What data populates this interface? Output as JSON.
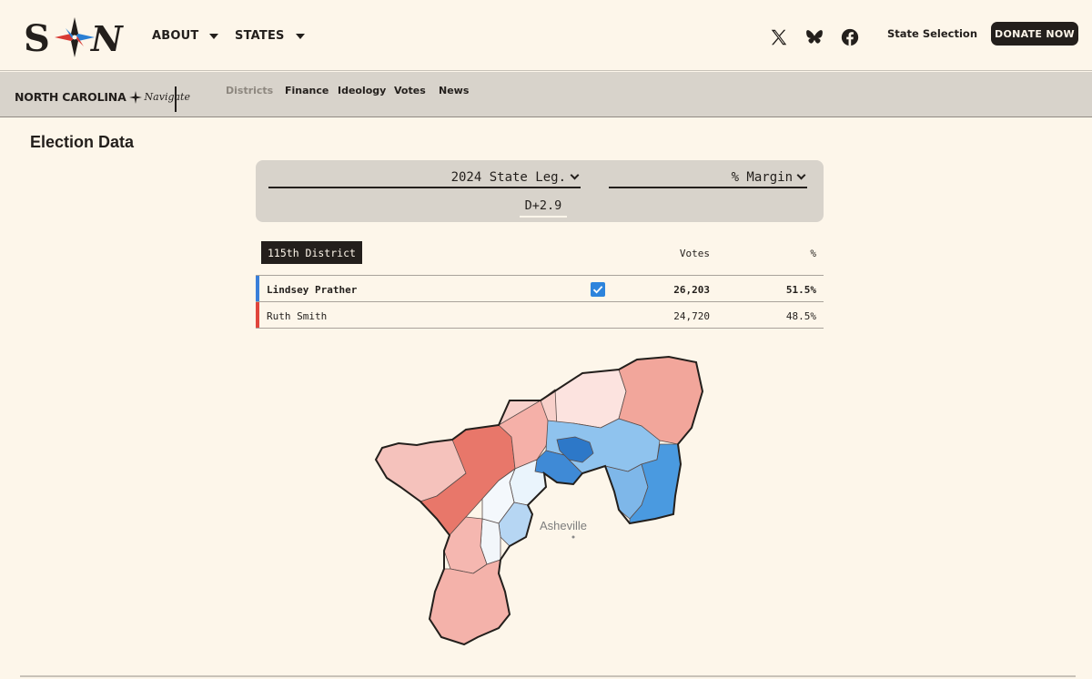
{
  "nav": {
    "about_label": "ABOUT",
    "states_label": "STATES",
    "state_selection_label": "State Selection",
    "donate_label": "DONATE NOW",
    "social_icons": [
      "x-icon",
      "bluesky-icon",
      "facebook-icon"
    ]
  },
  "subnav": {
    "state_name": "NORTH CAROLINA",
    "brand_script": "Navigate",
    "tabs": [
      {
        "label": "Districts",
        "active": true
      },
      {
        "label": "Finance",
        "active": false
      },
      {
        "label": "Ideology",
        "active": false
      },
      {
        "label": "Votes",
        "active": false
      },
      {
        "label": "News",
        "active": false
      }
    ]
  },
  "page": {
    "title": "Election Data"
  },
  "controls": {
    "election_select": "2024 State Leg.",
    "metric_select": "% Margin",
    "margin_value": "D+2.9"
  },
  "results": {
    "district": "115th District",
    "votes_header": "Votes",
    "pct_header": "%",
    "candidates": [
      {
        "name": "Lindsey Prather",
        "votes": "26,203",
        "pct": "51.5%",
        "party_color": "#3a7fd9",
        "winner": true
      },
      {
        "name": "Ruth Smith",
        "votes": "24,720",
        "pct": "48.5%",
        "party_color": "#e0453c",
        "winner": false
      }
    ]
  },
  "map": {
    "city_label": "Asheville"
  },
  "colors": {
    "background": "#fdf6ea",
    "dark": "#231f1c",
    "panel": "#d8d3cb",
    "dem": "#3a7fd9",
    "rep": "#e0453c"
  }
}
